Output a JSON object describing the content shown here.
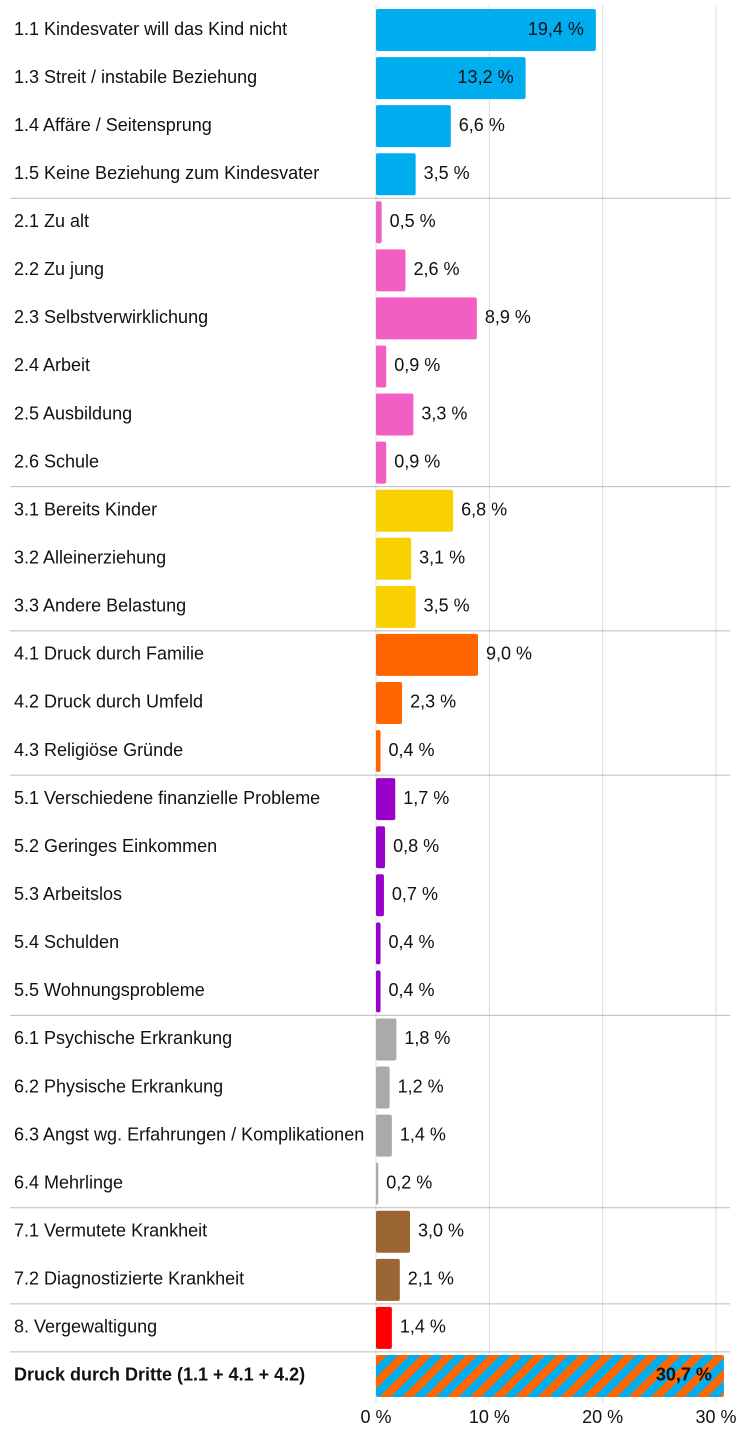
{
  "chart_data": {
    "type": "barh",
    "categories": [
      "1.1 Kindesvater will das Kind nicht",
      "1.3 Streit / instabile Beziehung",
      "1.4 Affäre / Seitensprung",
      "1.5 Keine Beziehung zum Kindesvater",
      "2.1 Zu alt",
      "2.2 Zu jung",
      "2.3 Selbstverwirklichung",
      "2.4 Arbeit",
      "2.5 Ausbildung",
      "2.6 Schule",
      "3.1 Bereits Kinder",
      "3.2 Alleinerziehung",
      "3.3 Andere Belastung",
      "4.1 Druck durch Familie",
      "4.2 Druck durch Umfeld",
      "4.3 Religiöse Gründe",
      "5.1 Verschiedene finanzielle Probleme",
      "5.2 Geringes Einkommen",
      "5.3 Arbeitslos",
      "5.4 Schulden",
      "5.5 Wohnungsprobleme",
      "6.1 Psychische Erkrankung",
      "6.2 Physische Erkrankung",
      "6.3 Angst wg. Erfahrungen / Komplikationen",
      "6.4 Mehrlinge",
      "7.1 Vermutete Krankheit",
      "7.2 Diagnostizierte Krankheit",
      "8. Vergewaltigung",
      "Druck durch Dritte (1.1 + 4.1 + 4.2)"
    ],
    "values": [
      19.4,
      13.2,
      6.6,
      3.5,
      0.5,
      2.6,
      8.9,
      0.9,
      3.3,
      0.9,
      6.8,
      3.1,
      3.5,
      9.0,
      2.3,
      0.4,
      1.7,
      0.8,
      0.7,
      0.4,
      0.4,
      1.8,
      1.2,
      1.4,
      0.2,
      3.0,
      2.1,
      1.4,
      30.7
    ],
    "value_labels": [
      "19,4 %",
      "13,2 %",
      "6,6 %",
      "3,5 %",
      "0,5 %",
      "2,6 %",
      "8,9 %",
      "0,9 %",
      "3,3 %",
      "0,9 %",
      "6,8 %",
      "3,1 %",
      "3,5 %",
      "9,0 %",
      "2,3 %",
      "0,4 %",
      "1,7 %",
      "0,8 %",
      "0,7 %",
      "0,4 %",
      "0,4 %",
      "1,8 %",
      "1,2 %",
      "1,4 %",
      "0,2 %",
      "3,0 %",
      "2,1 %",
      "1,4 %",
      "30,7 %"
    ],
    "colors": [
      "#00aeef",
      "#00aeef",
      "#00aeef",
      "#00aeef",
      "#f25ec4",
      "#f25ec4",
      "#f25ec4",
      "#f25ec4",
      "#f25ec4",
      "#f25ec4",
      "#f9d000",
      "#f9d000",
      "#f9d000",
      "#ff6600",
      "#ff6600",
      "#ff6600",
      "#9900cc",
      "#9900cc",
      "#9900cc",
      "#9900cc",
      "#9900cc",
      "#aaaaaa",
      "#aaaaaa",
      "#aaaaaa",
      "#aaaaaa",
      "#9b6633",
      "#9b6633",
      "#ff0000",
      [
        "#00aeef",
        "#ff6600"
      ]
    ],
    "xlim": [
      0,
      30
    ],
    "xticks": [
      {
        "value": 0,
        "label": "0 %"
      },
      {
        "value": 10,
        "label": "10 %"
      },
      {
        "value": 20,
        "label": "20 %"
      },
      {
        "value": 30,
        "label": "30 %"
      }
    ],
    "grid": true
  }
}
